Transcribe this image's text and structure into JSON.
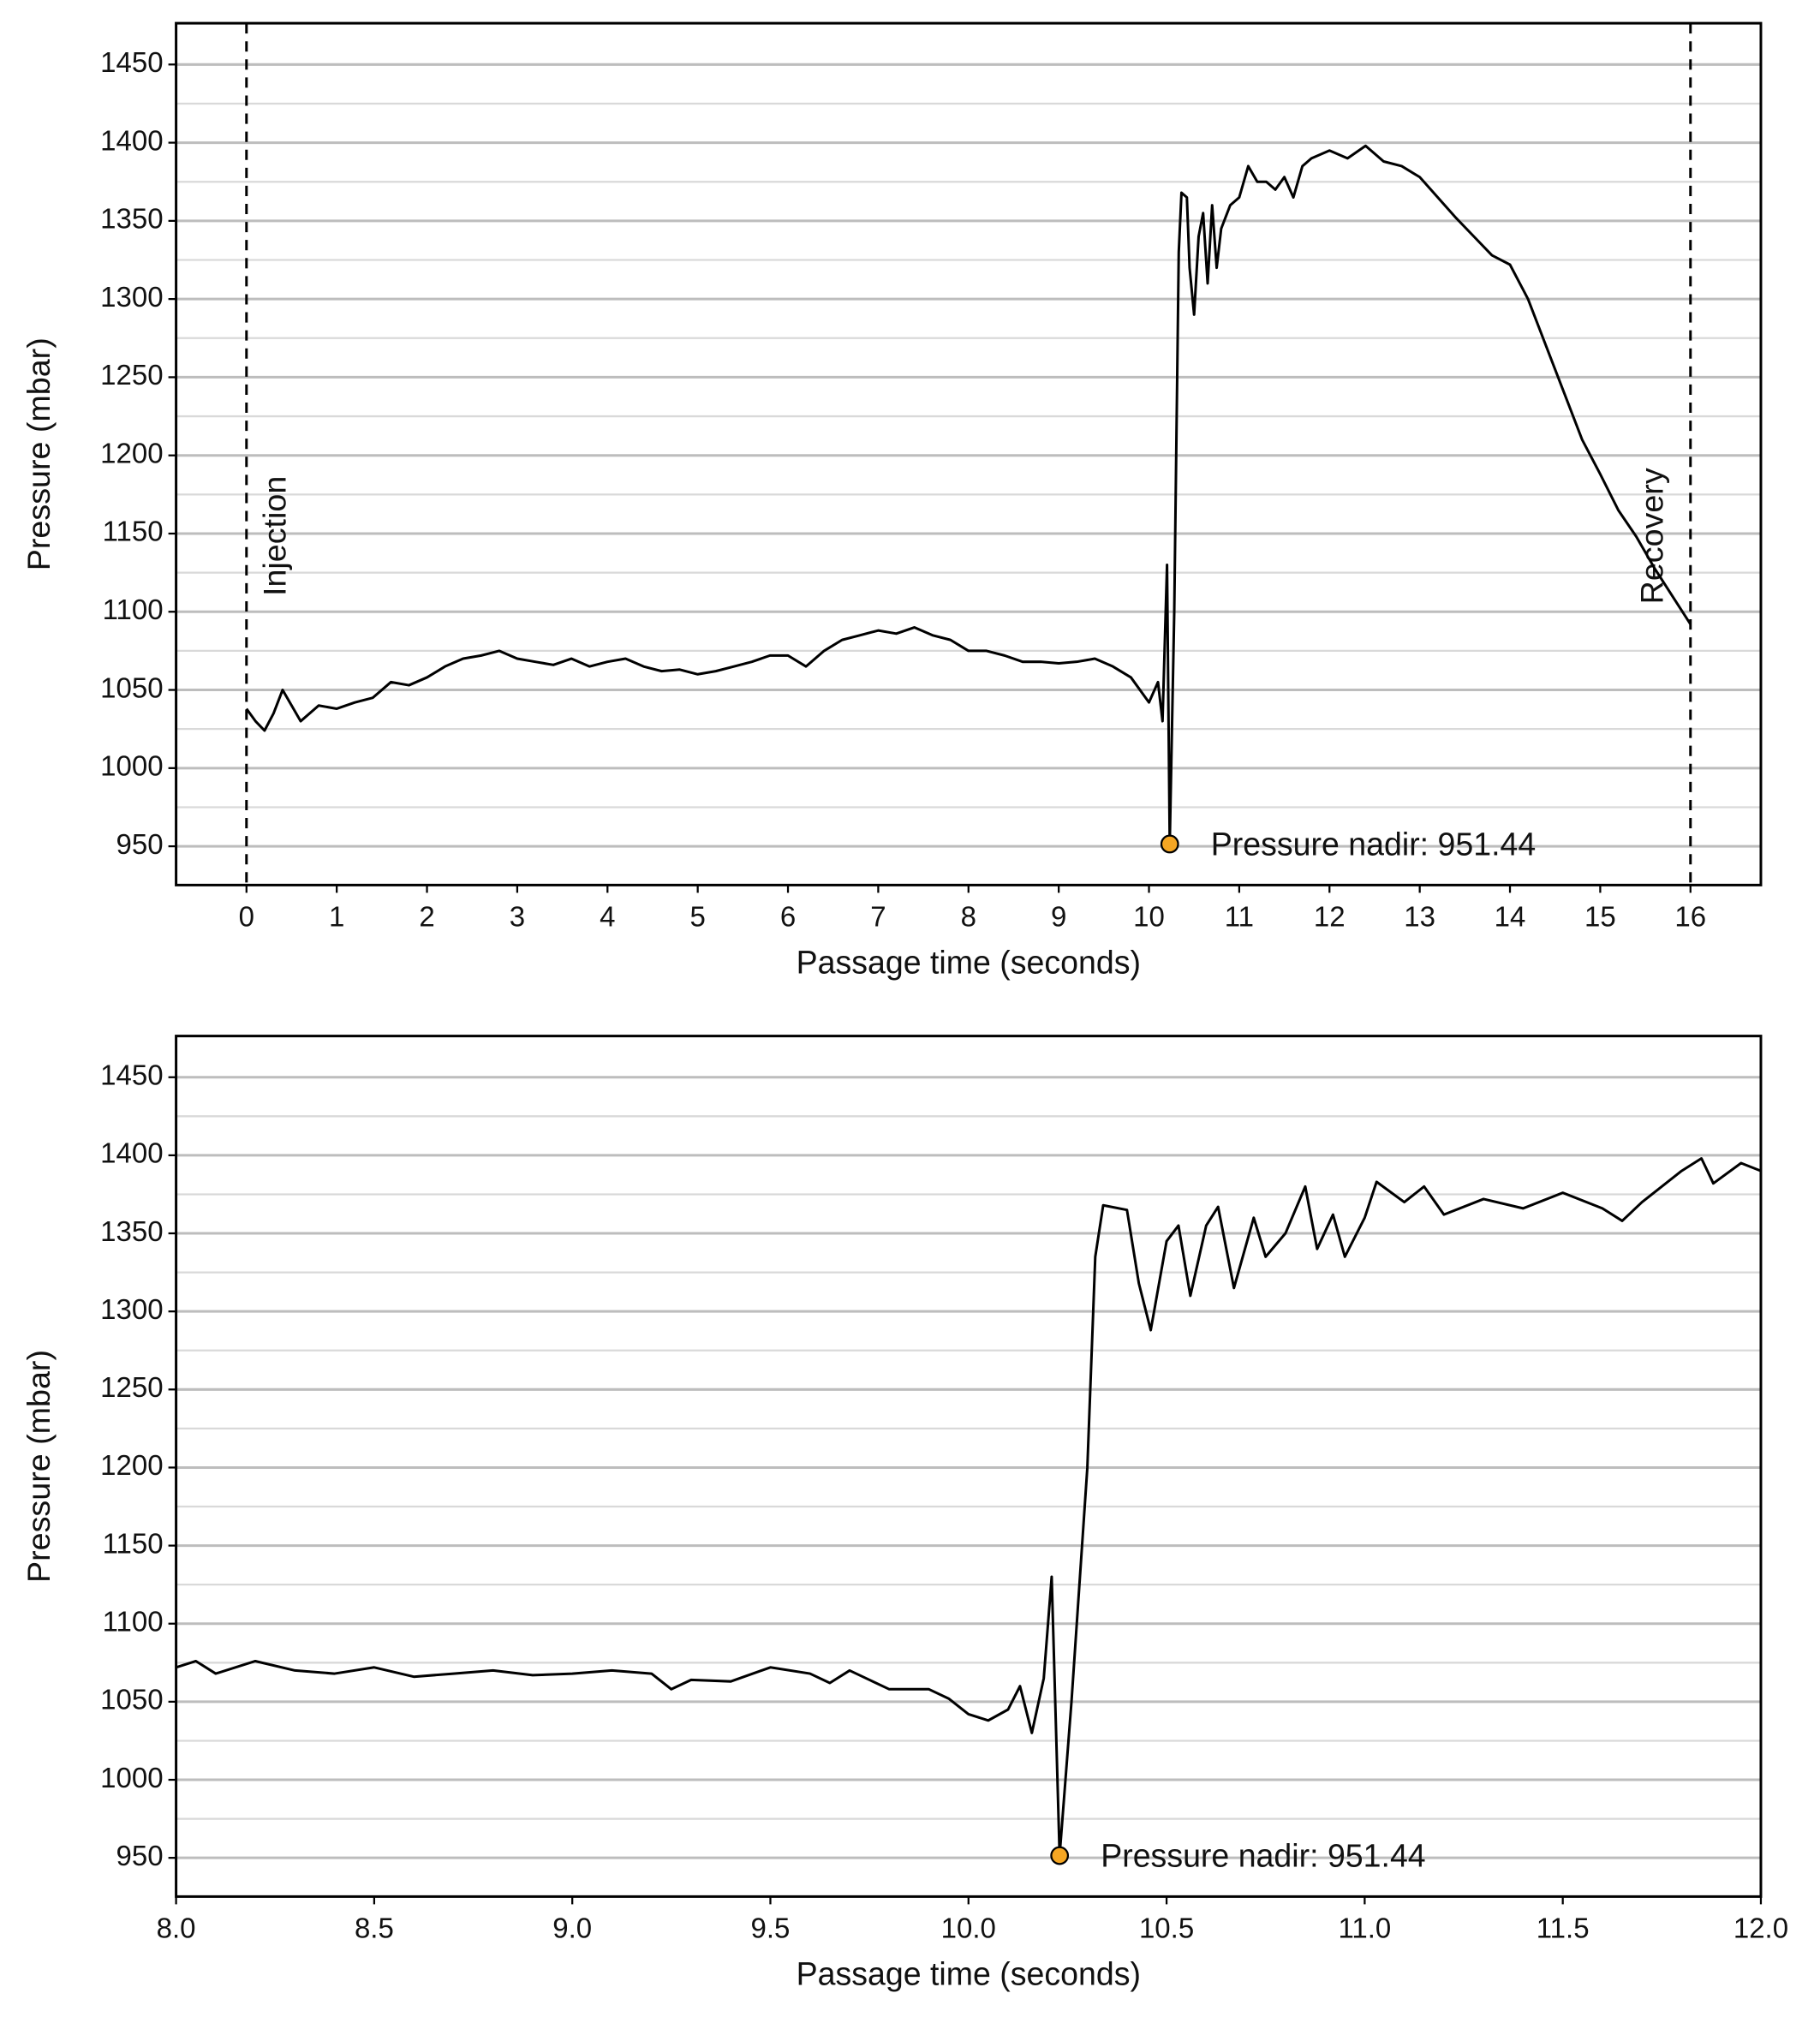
{
  "chart_data": [
    {
      "type": "line",
      "xlabel": "Passage time (seconds)",
      "ylabel": "Pressure (mbar)",
      "xlim": [
        -0.78,
        16.78
      ],
      "ylim": [
        925.2,
        1476.4
      ],
      "xticks": [
        0,
        1,
        2,
        3,
        4,
        5,
        6,
        7,
        8,
        9,
        10,
        11,
        12,
        13,
        14,
        15,
        16
      ],
      "yticks": [
        950,
        1000,
        1050,
        1100,
        1150,
        1200,
        1250,
        1300,
        1350,
        1400,
        1450
      ],
      "minor_yticks": [
        975,
        1025,
        1075,
        1125,
        1175,
        1225,
        1275,
        1325,
        1375,
        1425
      ],
      "grid": true,
      "vlines": [
        {
          "x": 0,
          "label": "Injection"
        },
        {
          "x": 16,
          "label": "Recovery"
        }
      ],
      "annotations": [
        {
          "text": "Pressure nadir: 951.44",
          "x": 10.23,
          "y": 951.44,
          "color": "#f5a623"
        }
      ],
      "series": [
        {
          "color": "#000000",
          "x": [
            0,
            0.1,
            0.2,
            0.3,
            0.4,
            0.5,
            0.6,
            0.8,
            1.0,
            1.2,
            1.4,
            1.6,
            1.8,
            2.0,
            2.2,
            2.4,
            2.6,
            2.8,
            3.0,
            3.2,
            3.4,
            3.6,
            3.8,
            4.0,
            4.2,
            4.4,
            4.6,
            4.8,
            5.0,
            5.2,
            5.4,
            5.6,
            5.8,
            6.0,
            6.2,
            6.4,
            6.6,
            6.8,
            7.0,
            7.2,
            7.4,
            7.6,
            7.8,
            8.0,
            8.2,
            8.4,
            8.6,
            8.8,
            9.0,
            9.2,
            9.4,
            9.6,
            9.8,
            10.0,
            10.1,
            10.15,
            10.2,
            10.23,
            10.28,
            10.33,
            10.36,
            10.42,
            10.45,
            10.5,
            10.55,
            10.6,
            10.65,
            10.7,
            10.75,
            10.8,
            10.9,
            11.0,
            11.1,
            11.2,
            11.3,
            11.4,
            11.5,
            11.6,
            11.7,
            11.8,
            12.0,
            12.2,
            12.4,
            12.6,
            12.8,
            13.0,
            13.2,
            13.4,
            13.6,
            13.8,
            14.0,
            14.2,
            14.4,
            14.6,
            14.8,
            15.0,
            15.2,
            15.4,
            15.6,
            15.8,
            16.0
          ],
          "values": [
            1038,
            1030,
            1024,
            1035,
            1050,
            1040,
            1030,
            1040,
            1038,
            1042,
            1045,
            1055,
            1053,
            1058,
            1065,
            1070,
            1072,
            1075,
            1070,
            1068,
            1066,
            1070,
            1065,
            1068,
            1070,
            1065,
            1062,
            1063,
            1060,
            1062,
            1065,
            1068,
            1072,
            1072,
            1065,
            1075,
            1082,
            1085,
            1088,
            1086,
            1090,
            1085,
            1082,
            1075,
            1075,
            1072,
            1068,
            1068,
            1067,
            1068,
            1070,
            1065,
            1058,
            1042,
            1055,
            1030,
            1130,
            951.44,
            1100,
            1330,
            1368,
            1365,
            1320,
            1290,
            1340,
            1355,
            1310,
            1360,
            1320,
            1345,
            1360,
            1365,
            1385,
            1375,
            1375,
            1370,
            1378,
            1365,
            1385,
            1390,
            1395,
            1390,
            1398,
            1388,
            1385,
            1378,
            1365,
            1352,
            1340,
            1328,
            1322,
            1300,
            1270,
            1240,
            1210,
            1188,
            1165,
            1148,
            1128,
            1110,
            1092
          ]
        }
      ]
    },
    {
      "type": "line",
      "xlabel": "Passage time (seconds)",
      "ylabel": "Pressure (mbar)",
      "xlim": [
        8.0,
        12.0
      ],
      "ylim": [
        925.2,
        1476.4
      ],
      "xticks": [
        {
          "value": 8,
          "label": "8.0"
        },
        8.5,
        {
          "value": 9,
          "label": "9.0"
        },
        9.5,
        {
          "value": 10,
          "label": "10.0"
        },
        10.5,
        {
          "value": 11,
          "label": "11.0"
        },
        11.5,
        {
          "value": 12,
          "label": "12.0"
        }
      ],
      "yticks": [
        950,
        1000,
        1050,
        1100,
        1150,
        1200,
        1250,
        1300,
        1350,
        1400,
        1450
      ],
      "minor_yticks": [
        975,
        1025,
        1075,
        1125,
        1175,
        1225,
        1275,
        1325,
        1375,
        1425
      ],
      "grid": true,
      "annotations": [
        {
          "text": "Pressure nadir: 951.44",
          "x": 10.23,
          "y": 951.44,
          "color": "#f5a623"
        }
      ],
      "series": [
        {
          "color": "#000000",
          "x": [
            8.0,
            8.05,
            8.1,
            8.2,
            8.3,
            8.4,
            8.5,
            8.6,
            8.7,
            8.8,
            8.9,
            9.0,
            9.1,
            9.2,
            9.25,
            9.3,
            9.4,
            9.5,
            9.6,
            9.65,
            9.7,
            9.8,
            9.9,
            9.95,
            10.0,
            10.05,
            10.1,
            10.13,
            10.16,
            10.19,
            10.21,
            10.23,
            10.26,
            10.3,
            10.32,
            10.34,
            10.4,
            10.43,
            10.46,
            10.5,
            10.53,
            10.56,
            10.6,
            10.63,
            10.67,
            10.72,
            10.75,
            10.8,
            10.85,
            10.88,
            10.92,
            10.95,
            11.0,
            11.03,
            11.1,
            11.15,
            11.2,
            11.3,
            11.4,
            11.5,
            11.6,
            11.65,
            11.7,
            11.8,
            11.85,
            11.88,
            11.95,
            12.0
          ],
          "values": [
            1072,
            1076,
            1068,
            1076,
            1070,
            1068,
            1072,
            1066,
            1068,
            1070,
            1067,
            1068,
            1070,
            1068,
            1058,
            1064,
            1063,
            1072,
            1068,
            1062,
            1070,
            1058,
            1058,
            1052,
            1042,
            1038,
            1045,
            1060,
            1030,
            1065,
            1130,
            951.44,
            1050,
            1200,
            1335,
            1368,
            1365,
            1318,
            1288,
            1345,
            1355,
            1310,
            1355,
            1367,
            1315,
            1360,
            1335,
            1350,
            1380,
            1340,
            1362,
            1335,
            1360,
            1383,
            1370,
            1380,
            1362,
            1372,
            1366,
            1376,
            1366,
            1358,
            1370,
            1390,
            1398,
            1382,
            1395,
            1390
          ]
        }
      ]
    }
  ]
}
